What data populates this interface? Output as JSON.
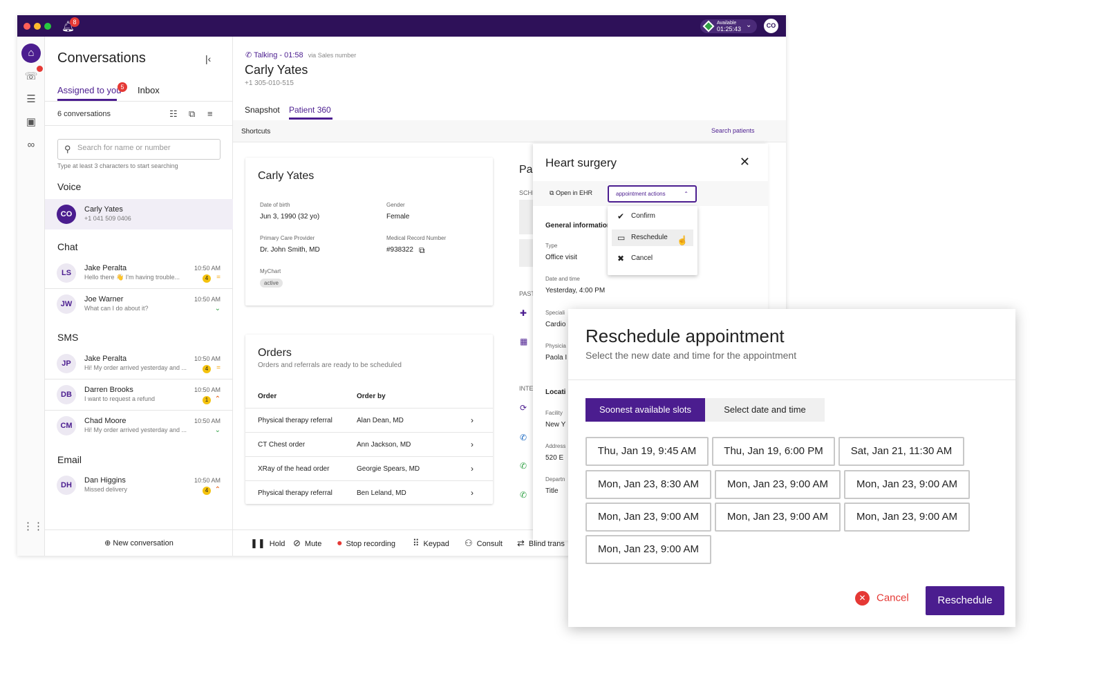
{
  "topbar": {
    "notifications": "8",
    "status": {
      "label": "Available",
      "timer": "01:25:43"
    },
    "avatar": "CO"
  },
  "rail": {
    "icons": [
      "home-icon",
      "agent-icon",
      "list-icon",
      "contacts-icon",
      "voicemail-icon",
      "apps-grid-icon"
    ],
    "badge": ""
  },
  "conversations": {
    "title": "Conversations",
    "tabs": [
      {
        "label": "Assigned to you",
        "badge": "5"
      },
      {
        "label": "Inbox"
      }
    ],
    "count": "6 conversations",
    "search_placeholder": "Search for name or number",
    "search_hint": "Type at least 3 characters to start searching",
    "sections": {
      "voice": "Voice",
      "chat": "Chat",
      "sms": "SMS",
      "email": "Email"
    },
    "voice": [
      {
        "initials": "CO",
        "name": "Carly Yates",
        "sub": "+1 041 509 0406"
      }
    ],
    "chat": [
      {
        "initials": "LS",
        "name": "Jake Peralta",
        "sub": "Hello there 👋 I'm having trouble...",
        "time": "10:50 AM",
        "badge": "4",
        "priority": "="
      },
      {
        "initials": "JW",
        "name": "Joe Warner",
        "sub": "What can I do about it?",
        "time": "10:50 AM",
        "badge": "",
        "priority": "⌄"
      }
    ],
    "sms": [
      {
        "initials": "JP",
        "name": "Jake Peralta",
        "sub": "Hi! My order arrived yesterday and ...",
        "time": "10:50 AM",
        "badge": "4",
        "priority": "="
      },
      {
        "initials": "DB",
        "name": "Darren Brooks",
        "sub": "I want to request a refund",
        "time": "10:50 AM",
        "badge": "1",
        "priority": "⌃"
      },
      {
        "initials": "CM",
        "name": "Chad Moore",
        "sub": "Hi! My order arrived yesterday and ...",
        "time": "10:50 AM",
        "badge": "",
        "priority": "⌄"
      }
    ],
    "email": [
      {
        "initials": "DH",
        "name": "Dan Higgins",
        "sub": "Missed delivery",
        "time": "10:50 AM",
        "badge": "4",
        "priority": "⌃"
      }
    ],
    "new_conversation": "New conversation"
  },
  "call": {
    "status": "Talking - 01:58",
    "via": "via Sales number",
    "name": "Carly Yates",
    "phone": "+1 305-010-515",
    "tabs": [
      "Snapshot",
      "Patient 360"
    ],
    "shortcuts": "Shortcuts",
    "search_patients": "Search patients"
  },
  "patient_card": {
    "name": "Carly Yates",
    "dob_label": "Date of birth",
    "dob": "Jun 3, 1990 (32 yo)",
    "gender_label": "Gender",
    "gender": "Female",
    "pcp_label": "Primary Care Provider",
    "pcp": "Dr. John Smith, MD",
    "mrn_label": "Medical Record Number",
    "mrn": "#938322",
    "mychart_label": "MyChart",
    "mychart": "active"
  },
  "orders": {
    "title": "Orders",
    "subtitle": "Orders and referrals are ready to be scheduled",
    "col_order": "Order",
    "col_by": "Order by",
    "rows": [
      {
        "order": "Physical therapy referral",
        "by": "Alan Dean, MD"
      },
      {
        "order": "CT Chest order",
        "by": "Ann Jackson, MD"
      },
      {
        "order": "XRay of the head order",
        "by": "Georgie Spears, MD"
      },
      {
        "order": "Physical therapy referral",
        "by": "Ben Leland, MD"
      }
    ]
  },
  "background_column": {
    "title": "Pa",
    "sched": "SCHE",
    "past": "PAST",
    "inte": "INTE"
  },
  "call_tools": [
    "Hold",
    "Mute",
    "Stop recording",
    "Keypad",
    "Consult",
    "Blind trans"
  ],
  "appointment_panel": {
    "title": "Heart surgery",
    "open_ehr": "Open in EHR",
    "actions_label": "appointment actions",
    "general": "General information",
    "type_label": "Type",
    "type": "Office visit",
    "datetime_label": "Date and time",
    "datetime": "Yesterday, 4:00 PM",
    "specialty_label": "Speciali",
    "specialty": "Cardio",
    "physician_label": "Physicia",
    "physician": "Paola I",
    "location": "Locati",
    "facility_label": "Facility",
    "facility": "New Y",
    "address_label": "Address",
    "address": "520 E",
    "dept_label": "Departn",
    "dept": "Title"
  },
  "actions_menu": [
    "Confirm",
    "Reschedule",
    "Cancel"
  ],
  "reschedule_modal": {
    "title": "Reschedule appointment",
    "subtitle": "Select the new date and time for the appointment",
    "tabs": [
      "Soonest available slots",
      "Select date and time"
    ],
    "slots": [
      "Thu, Jan 19, 9:45 AM",
      "Thu, Jan 19, 6:00 PM",
      "Sat, Jan 21, 11:30 AM",
      "Mon, Jan 23, 8:30 AM",
      "Mon, Jan 23, 9:00 AM",
      "Mon, Jan 23, 9:00 AM",
      "Mon, Jan 23, 9:00 AM",
      "Mon, Jan 23, 9:00 AM",
      "Mon, Jan 23, 9:00 AM",
      "Mon, Jan 23, 9:00 AM"
    ],
    "cancel": "Cancel",
    "confirm": "Reschedule"
  },
  "colors": {
    "brand": "#4b1d8f",
    "topbar": "#2e1159",
    "danger": "#e53935"
  }
}
